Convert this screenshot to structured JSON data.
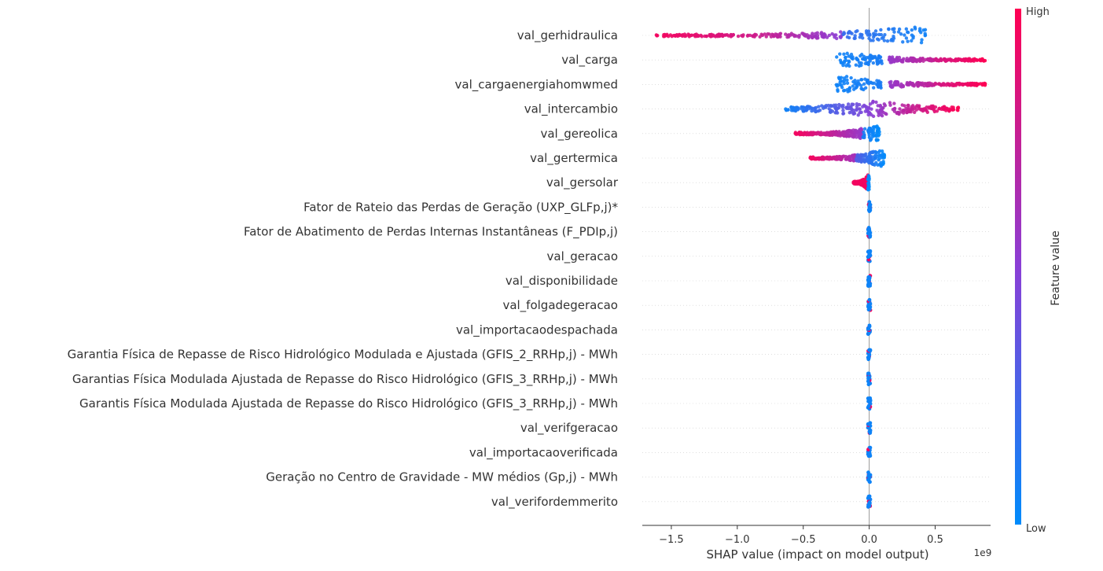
{
  "chart_data": {
    "type": "scatter",
    "subtype": "shap-beeswarm",
    "title": "",
    "xlabel": "SHAP value (impact on model output)",
    "x_offset_text": "1e9",
    "xlim": [
      -1.72,
      0.92
    ],
    "xticks": [
      -1.5,
      -1.0,
      -0.5,
      0.0,
      0.5
    ],
    "xtick_labels": [
      "−1.5",
      "−1.0",
      "−0.5",
      "0.0",
      "0.5"
    ],
    "features": [
      {
        "name": "val_gerhidraulica",
        "min": -1.62,
        "max": 0.45,
        "segments": [
          [
            -1.62,
            -0.9,
            0.95,
            0.8
          ],
          [
            -0.9,
            -0.2,
            0.8,
            0.5
          ],
          [
            -0.2,
            0.45,
            0.2,
            0.05
          ]
        ],
        "peak": 0.33
      },
      {
        "name": "val_carga",
        "min": -0.25,
        "max": 0.88,
        "segments": [
          [
            -0.25,
            0.1,
            0.05,
            0.1
          ],
          [
            0.15,
            0.5,
            0.55,
            0.75
          ],
          [
            0.5,
            0.88,
            0.8,
            1.0
          ]
        ],
        "peak": -0.2
      },
      {
        "name": "val_cargaenergiahomwmed",
        "min": -0.25,
        "max": 0.88,
        "segments": [
          [
            -0.25,
            0.1,
            0.05,
            0.1
          ],
          [
            0.15,
            0.5,
            0.55,
            0.75
          ],
          [
            0.5,
            0.88,
            0.8,
            1.0
          ]
        ],
        "peak": -0.2
      },
      {
        "name": "val_intercambio",
        "min": -0.65,
        "max": 0.68,
        "segments": [
          [
            -0.65,
            -0.1,
            0.05,
            0.4
          ],
          [
            -0.1,
            0.25,
            0.4,
            0.7
          ],
          [
            0.25,
            0.68,
            0.7,
            1.0
          ]
        ],
        "peak": 0.05
      },
      {
        "name": "val_gereolica",
        "min": -0.56,
        "max": 0.08,
        "segments": [
          [
            -0.56,
            -0.05,
            0.95,
            0.55
          ],
          [
            -0.05,
            0.08,
            0.1,
            0.0
          ]
        ],
        "peak": 0.05
      },
      {
        "name": "val_gertermica",
        "min": -0.45,
        "max": 0.12,
        "segments": [
          [
            -0.45,
            -0.1,
            0.95,
            0.6
          ],
          [
            -0.1,
            0.12,
            0.3,
            0.0
          ]
        ],
        "peak": 0.08
      },
      {
        "name": "val_gersolar",
        "min": -0.12,
        "max": 0.0,
        "segments": [
          [
            -0.12,
            -0.01,
            0.95,
            0.95
          ],
          [
            -0.01,
            0.0,
            0.0,
            0.0
          ]
        ],
        "peak": -0.01
      },
      {
        "name": "Fator de Rateio das Perdas de Geração (UXP_GLFp,j)*",
        "min": 0.0,
        "max": 0.0,
        "segments": [],
        "peak": 0.0
      },
      {
        "name": "Fator de Abatimento de Perdas Internas Instantâneas (F_PDIp,j)",
        "min": 0.0,
        "max": 0.0,
        "segments": [],
        "peak": 0.0
      },
      {
        "name": "val_geracao",
        "min": 0.0,
        "max": 0.0,
        "segments": [],
        "peak": 0.0
      },
      {
        "name": "val_disponibilidade",
        "min": 0.0,
        "max": 0.0,
        "segments": [],
        "peak": 0.0
      },
      {
        "name": "val_folgadegeracao",
        "min": 0.0,
        "max": 0.0,
        "segments": [],
        "peak": 0.0
      },
      {
        "name": "val_importacaodespachada",
        "min": 0.0,
        "max": 0.0,
        "segments": [],
        "peak": 0.0
      },
      {
        "name": "Garantia Física de Repasse de Risco Hidrológico Modulada e Ajustada (GFIS_2_RRHp,j) - MWh",
        "min": 0.0,
        "max": 0.0,
        "segments": [],
        "peak": 0.0
      },
      {
        "name": "Garantias Física Modulada Ajustada de Repasse do Risco Hidrológico (GFIS_3_RRHp,j) - MWh",
        "min": 0.0,
        "max": 0.0,
        "segments": [],
        "peak": 0.0
      },
      {
        "name": "Garantis Física Modulada Ajustada de Repasse do Risco Hidrológico (GFIS_3_RRHp,j) - MWh",
        "min": 0.0,
        "max": 0.0,
        "segments": [],
        "peak": 0.0
      },
      {
        "name": "val_verifgeracao",
        "min": 0.0,
        "max": 0.0,
        "segments": [],
        "peak": 0.0
      },
      {
        "name": "val_importacaoverificada",
        "min": 0.0,
        "max": 0.0,
        "segments": [],
        "peak": 0.0
      },
      {
        "name": "Geração no Centro de Gravidade - MW médios (Gp,j) - MWh",
        "min": 0.0,
        "max": 0.0,
        "segments": [],
        "peak": 0.0
      },
      {
        "name": "val_verifordemmerito",
        "min": 0.0,
        "max": 0.0,
        "segments": [],
        "peak": 0.0
      }
    ],
    "colorbar": {
      "label": "Feature value",
      "high_label": "High",
      "low_label": "Low",
      "high_color": "#ff0052",
      "low_color": "#008bfb"
    },
    "grid": false,
    "vertical_zero_line": true
  }
}
